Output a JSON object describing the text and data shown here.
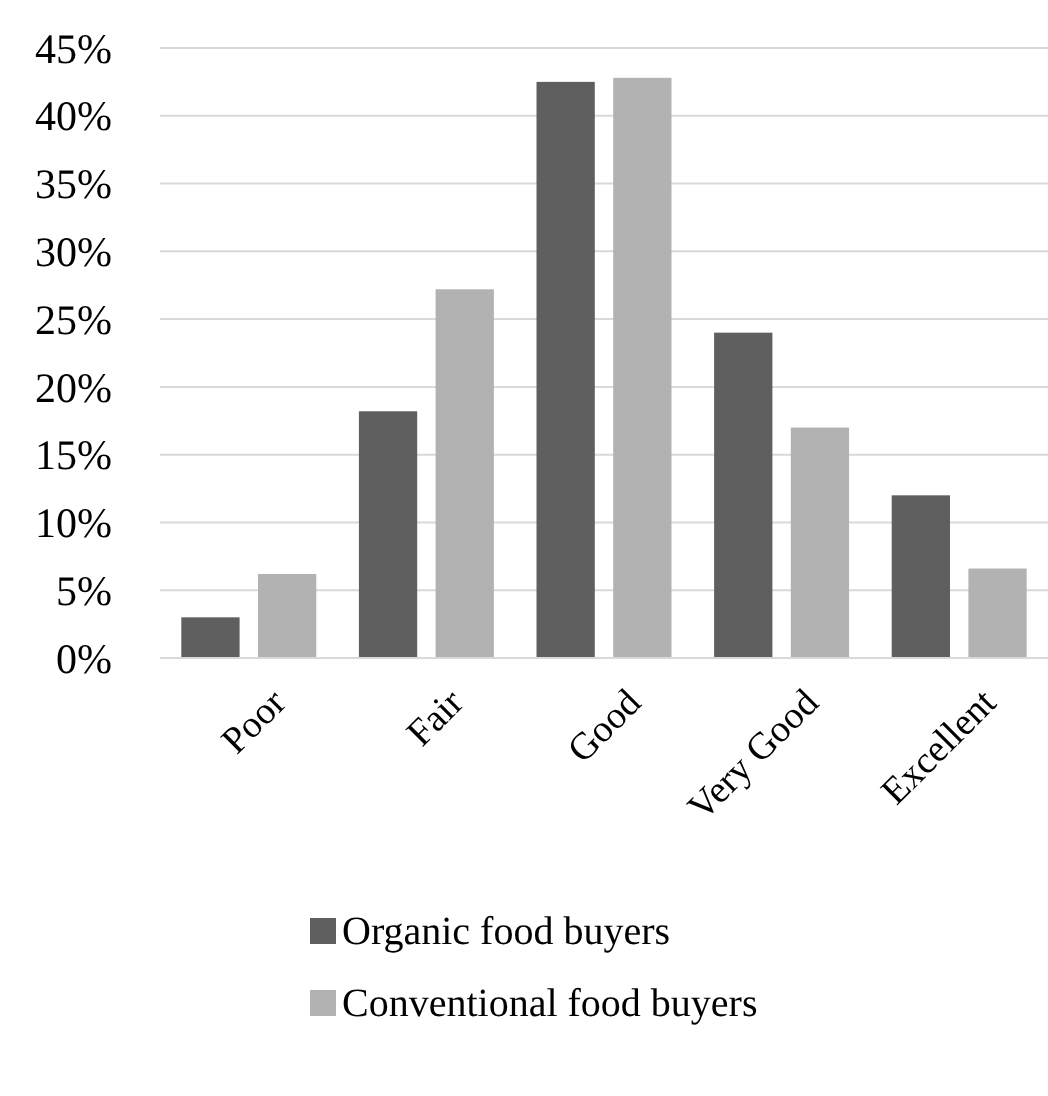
{
  "chart_data": {
    "type": "bar",
    "categories": [
      "Poor",
      "Fair",
      "Good",
      "Very Good",
      "Excellent"
    ],
    "series": [
      {
        "name": "Organic food buyers",
        "color": "#5f5f5f",
        "values": [
          3.0,
          18.2,
          42.5,
          24.0,
          12.0
        ]
      },
      {
        "name": "Conventional food buyers",
        "color": "#b2b2b2",
        "values": [
          6.2,
          27.2,
          42.8,
          17.0,
          6.6
        ]
      }
    ],
    "ylim": [
      0,
      45
    ],
    "yticks": [
      {
        "value": 0,
        "label": "0%"
      },
      {
        "value": 5,
        "label": "5%"
      },
      {
        "value": 10,
        "label": "10%"
      },
      {
        "value": 15,
        "label": "15%"
      },
      {
        "value": 20,
        "label": "20%"
      },
      {
        "value": 25,
        "label": "25%"
      },
      {
        "value": 30,
        "label": "30%"
      },
      {
        "value": 35,
        "label": "35%"
      },
      {
        "value": 40,
        "label": "40%"
      },
      {
        "value": 45,
        "label": "45%"
      }
    ],
    "grid": "y",
    "legend": "bottom"
  }
}
